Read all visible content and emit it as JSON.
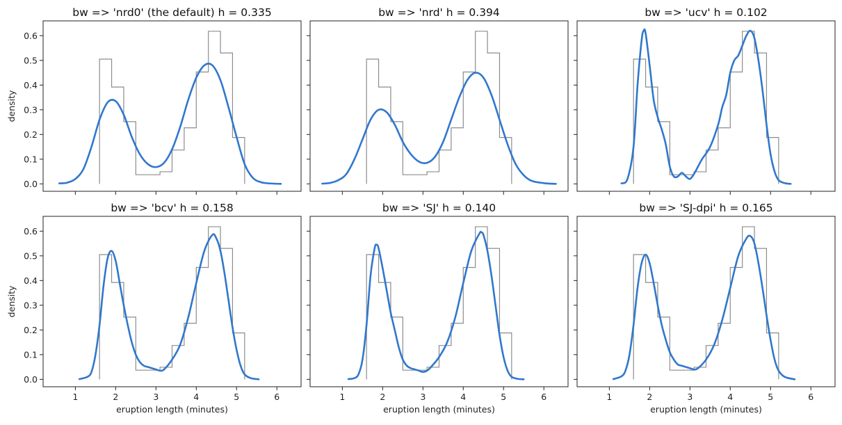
{
  "figure": {
    "ylabel": "density",
    "xlabel": "eruption length (minutes)"
  },
  "chart_data": [
    {
      "type": "line",
      "title": "bw => 'nrd0' (the default)   h = 0.335",
      "xlim": [
        0.2,
        6.6
      ],
      "ylim": [
        -0.03,
        0.66
      ],
      "xticks": [
        1,
        2,
        3,
        4,
        5,
        6
      ],
      "yticks": [
        0.0,
        0.1,
        0.2,
        0.3,
        0.4,
        0.5,
        0.6
      ],
      "histogram": {
        "edges": [
          1.6,
          1.9,
          2.2,
          2.5,
          2.8,
          3.1,
          3.4,
          3.7,
          4.0,
          4.3,
          4.6,
          4.9,
          5.2
        ],
        "heights": [
          0.505,
          0.392,
          0.252,
          0.037,
          0.037,
          0.049,
          0.137,
          0.227,
          0.453,
          0.618,
          0.53,
          0.188
        ]
      },
      "kde": {
        "x": [
          0.6,
          0.8,
          1.0,
          1.2,
          1.4,
          1.6,
          1.8,
          2.0,
          2.2,
          2.4,
          2.6,
          2.8,
          3.0,
          3.2,
          3.4,
          3.6,
          3.8,
          4.0,
          4.2,
          4.4,
          4.6,
          4.8,
          5.0,
          5.2,
          5.4,
          5.6,
          5.8,
          6.1
        ],
        "y": [
          0.002,
          0.005,
          0.02,
          0.06,
          0.15,
          0.26,
          0.33,
          0.335,
          0.28,
          0.19,
          0.12,
          0.08,
          0.068,
          0.085,
          0.14,
          0.23,
          0.34,
          0.43,
          0.48,
          0.48,
          0.42,
          0.31,
          0.19,
          0.08,
          0.025,
          0.007,
          0.002,
          0.0
        ]
      }
    },
    {
      "type": "line",
      "title": "bw => 'nrd'   h = 0.394",
      "xlim": [
        0.2,
        6.6
      ],
      "ylim": [
        -0.03,
        0.66
      ],
      "xticks": [
        1,
        2,
        3,
        4,
        5,
        6
      ],
      "yticks": [
        0.0,
        0.1,
        0.2,
        0.3,
        0.4,
        0.5,
        0.6
      ],
      "histogram": {
        "edges": [
          1.6,
          1.9,
          2.2,
          2.5,
          2.8,
          3.1,
          3.4,
          3.7,
          4.0,
          4.3,
          4.6,
          4.9,
          5.2
        ],
        "heights": [
          0.505,
          0.392,
          0.252,
          0.037,
          0.037,
          0.049,
          0.137,
          0.227,
          0.453,
          0.618,
          0.53,
          0.188
        ]
      },
      "kde": {
        "x": [
          0.5,
          0.7,
          0.9,
          1.1,
          1.3,
          1.5,
          1.7,
          1.9,
          2.1,
          2.3,
          2.5,
          2.7,
          2.9,
          3.1,
          3.3,
          3.5,
          3.7,
          3.9,
          4.1,
          4.3,
          4.5,
          4.7,
          4.9,
          5.1,
          5.3,
          5.5,
          5.7,
          6.0,
          6.3
        ],
        "y": [
          0.001,
          0.004,
          0.015,
          0.04,
          0.1,
          0.18,
          0.26,
          0.3,
          0.29,
          0.24,
          0.17,
          0.12,
          0.09,
          0.085,
          0.11,
          0.17,
          0.26,
          0.35,
          0.42,
          0.45,
          0.43,
          0.36,
          0.26,
          0.16,
          0.08,
          0.035,
          0.012,
          0.003,
          0.0
        ]
      }
    },
    {
      "type": "line",
      "title": "bw => 'ucv'   h = 0.102",
      "xlim": [
        0.2,
        6.6
      ],
      "ylim": [
        -0.03,
        0.66
      ],
      "xticks": [
        1,
        2,
        3,
        4,
        5,
        6
      ],
      "yticks": [
        0.0,
        0.1,
        0.2,
        0.3,
        0.4,
        0.5,
        0.6
      ],
      "histogram": {
        "edges": [
          1.6,
          1.9,
          2.2,
          2.5,
          2.8,
          3.1,
          3.4,
          3.7,
          4.0,
          4.3,
          4.6,
          4.9,
          5.2
        ],
        "heights": [
          0.505,
          0.392,
          0.252,
          0.037,
          0.037,
          0.049,
          0.137,
          0.227,
          0.453,
          0.618,
          0.53,
          0.188
        ]
      },
      "kde": {
        "x": [
          1.3,
          1.45,
          1.6,
          1.7,
          1.8,
          1.85,
          1.9,
          2.0,
          2.1,
          2.2,
          2.3,
          2.4,
          2.5,
          2.6,
          2.7,
          2.8,
          2.9,
          3.0,
          3.1,
          3.2,
          3.3,
          3.5,
          3.7,
          3.8,
          3.9,
          4.0,
          4.1,
          4.2,
          4.3,
          4.4,
          4.5,
          4.6,
          4.7,
          4.8,
          4.9,
          5.0,
          5.1,
          5.2,
          5.35,
          5.5
        ],
        "y": [
          0.002,
          0.02,
          0.15,
          0.4,
          0.58,
          0.62,
          0.61,
          0.48,
          0.34,
          0.27,
          0.22,
          0.16,
          0.07,
          0.03,
          0.03,
          0.045,
          0.03,
          0.02,
          0.04,
          0.07,
          0.1,
          0.15,
          0.24,
          0.31,
          0.36,
          0.45,
          0.5,
          0.52,
          0.56,
          0.6,
          0.62,
          0.59,
          0.5,
          0.38,
          0.24,
          0.12,
          0.05,
          0.015,
          0.003,
          0.0
        ]
      }
    },
    {
      "type": "line",
      "title": "bw => 'bcv'   h = 0.158",
      "xlim": [
        0.2,
        6.6
      ],
      "ylim": [
        -0.03,
        0.66
      ],
      "xticks": [
        1,
        2,
        3,
        4,
        5,
        6
      ],
      "yticks": [
        0.0,
        0.1,
        0.2,
        0.3,
        0.4,
        0.5,
        0.6
      ],
      "histogram": {
        "edges": [
          1.6,
          1.9,
          2.2,
          2.5,
          2.8,
          3.1,
          3.4,
          3.7,
          4.0,
          4.3,
          4.6,
          4.9,
          5.2
        ],
        "heights": [
          0.505,
          0.392,
          0.252,
          0.037,
          0.037,
          0.049,
          0.137,
          0.227,
          0.453,
          0.618,
          0.53,
          0.188
        ]
      },
      "kde": {
        "x": [
          1.1,
          1.3,
          1.4,
          1.5,
          1.6,
          1.7,
          1.8,
          1.9,
          2.0,
          2.1,
          2.2,
          2.3,
          2.4,
          2.5,
          2.6,
          2.7,
          2.8,
          2.9,
          3.0,
          3.1,
          3.2,
          3.4,
          3.6,
          3.8,
          4.0,
          4.2,
          4.4,
          4.5,
          4.6,
          4.7,
          4.8,
          4.9,
          5.0,
          5.1,
          5.2,
          5.35,
          5.55
        ],
        "y": [
          0.001,
          0.01,
          0.03,
          0.1,
          0.22,
          0.38,
          0.49,
          0.52,
          0.48,
          0.39,
          0.3,
          0.22,
          0.15,
          0.1,
          0.07,
          0.055,
          0.05,
          0.045,
          0.04,
          0.035,
          0.04,
          0.08,
          0.14,
          0.25,
          0.39,
          0.52,
          0.585,
          0.57,
          0.52,
          0.43,
          0.32,
          0.21,
          0.12,
          0.055,
          0.02,
          0.005,
          0.0
        ]
      }
    },
    {
      "type": "line",
      "title": "bw => 'SJ'   h = 0.140",
      "xlim": [
        0.2,
        6.6
      ],
      "ylim": [
        -0.03,
        0.66
      ],
      "xticks": [
        1,
        2,
        3,
        4,
        5,
        6
      ],
      "yticks": [
        0.0,
        0.1,
        0.2,
        0.3,
        0.4,
        0.5,
        0.6
      ],
      "histogram": {
        "edges": [
          1.6,
          1.9,
          2.2,
          2.5,
          2.8,
          3.1,
          3.4,
          3.7,
          4.0,
          4.3,
          4.6,
          4.9,
          5.2
        ],
        "heights": [
          0.505,
          0.392,
          0.252,
          0.037,
          0.037,
          0.049,
          0.137,
          0.227,
          0.453,
          0.618,
          0.53,
          0.188
        ]
      },
      "kde": {
        "x": [
          1.15,
          1.3,
          1.4,
          1.5,
          1.6,
          1.7,
          1.8,
          1.85,
          1.9,
          2.0,
          2.1,
          2.2,
          2.3,
          2.4,
          2.5,
          2.6,
          2.7,
          2.8,
          2.9,
          3.0,
          3.1,
          3.2,
          3.4,
          3.6,
          3.8,
          4.0,
          4.2,
          4.4,
          4.45,
          4.5,
          4.6,
          4.7,
          4.8,
          4.9,
          5.0,
          5.1,
          5.2,
          5.35,
          5.5
        ],
        "y": [
          0.001,
          0.005,
          0.02,
          0.08,
          0.22,
          0.42,
          0.53,
          0.545,
          0.53,
          0.45,
          0.36,
          0.27,
          0.2,
          0.13,
          0.08,
          0.055,
          0.045,
          0.04,
          0.035,
          0.03,
          0.035,
          0.05,
          0.09,
          0.15,
          0.25,
          0.39,
          0.52,
          0.59,
          0.595,
          0.585,
          0.52,
          0.42,
          0.3,
          0.18,
          0.09,
          0.035,
          0.01,
          0.002,
          0.0
        ]
      }
    },
    {
      "type": "line",
      "title": "bw => 'SJ-dpi'   h = 0.165",
      "xlim": [
        0.2,
        6.6
      ],
      "ylim": [
        -0.03,
        0.66
      ],
      "xticks": [
        1,
        2,
        3,
        4,
        5,
        6
      ],
      "yticks": [
        0.0,
        0.1,
        0.2,
        0.3,
        0.4,
        0.5,
        0.6
      ],
      "histogram": {
        "edges": [
          1.6,
          1.9,
          2.2,
          2.5,
          2.8,
          3.1,
          3.4,
          3.7,
          4.0,
          4.3,
          4.6,
          4.9,
          5.2
        ],
        "heights": [
          0.505,
          0.392,
          0.252,
          0.037,
          0.037,
          0.049,
          0.137,
          0.227,
          0.453,
          0.618,
          0.53,
          0.188
        ]
      },
      "kde": {
        "x": [
          1.1,
          1.3,
          1.4,
          1.5,
          1.6,
          1.7,
          1.8,
          1.9,
          2.0,
          2.1,
          2.2,
          2.3,
          2.4,
          2.5,
          2.6,
          2.7,
          2.8,
          2.9,
          3.0,
          3.1,
          3.2,
          3.4,
          3.6,
          3.8,
          4.0,
          4.2,
          4.4,
          4.5,
          4.6,
          4.7,
          4.8,
          4.9,
          5.0,
          5.1,
          5.2,
          5.35,
          5.6
        ],
        "y": [
          0.001,
          0.012,
          0.035,
          0.1,
          0.22,
          0.37,
          0.47,
          0.505,
          0.47,
          0.39,
          0.3,
          0.22,
          0.16,
          0.11,
          0.08,
          0.06,
          0.055,
          0.05,
          0.045,
          0.04,
          0.045,
          0.08,
          0.14,
          0.24,
          0.37,
          0.5,
          0.57,
          0.58,
          0.55,
          0.47,
          0.37,
          0.26,
          0.16,
          0.08,
          0.035,
          0.01,
          0.0
        ]
      }
    }
  ]
}
